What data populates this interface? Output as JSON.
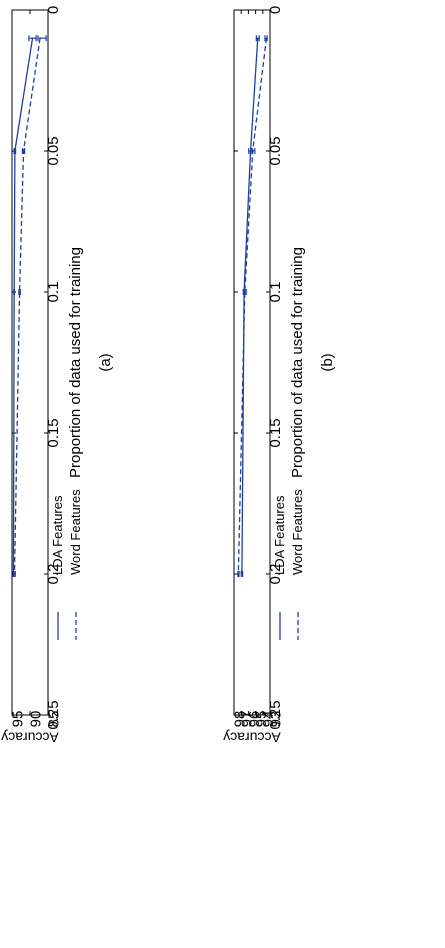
{
  "colors": {
    "series": "#1f3f9f",
    "axis": "#000000"
  },
  "chart_data": [
    {
      "id": "a",
      "type": "line",
      "caption": "(a)",
      "xlabel": "Proportion of data used for training",
      "ylabel": "Accuracy",
      "xlim": [
        0,
        0.25
      ],
      "ylim": [
        85,
        95
      ],
      "xticks": [
        "0",
        "0.05",
        "0.1",
        "0.15",
        "0.2",
        "0.25"
      ],
      "xtick_values": [
        0,
        0.05,
        0.1,
        0.15,
        0.2,
        0.25
      ],
      "yticks": [
        "85",
        "90",
        "95"
      ],
      "ytick_values": [
        85,
        90,
        95
      ],
      "grid": false,
      "legend_position": "top-right",
      "series": [
        {
          "name": "LDA Features",
          "style": "solid",
          "x": [
            0.01,
            0.05,
            0.1,
            0.2
          ],
          "y": [
            89.3,
            94.2,
            94.4,
            94.6
          ],
          "err_low": [
            88.3,
            94.0,
            94.3,
            94.5
          ],
          "err_high": [
            90.3,
            94.4,
            94.5,
            94.7
          ]
        },
        {
          "name": "Word Features",
          "style": "dashed",
          "x": [
            0.01,
            0.05,
            0.1,
            0.2
          ],
          "y": [
            87.2,
            91.8,
            92.9,
            94.3
          ],
          "err_low": [
            85.5,
            91.5,
            92.7,
            94.1
          ],
          "err_high": [
            87.8,
            92.1,
            93.1,
            94.5
          ]
        }
      ]
    },
    {
      "id": "b",
      "type": "line",
      "caption": "(b)",
      "xlabel": "Proportion of data used for training",
      "ylabel": "Accuracy",
      "xlim": [
        0,
        0.25
      ],
      "ylim": [
        93,
        98
      ],
      "xticks": [
        "0",
        "0.05",
        "0.1",
        "0.15",
        "0.2",
        "0.25"
      ],
      "xtick_values": [
        0,
        0.05,
        0.1,
        0.15,
        0.2,
        0.25
      ],
      "yticks": [
        "93",
        "94",
        "95",
        "96",
        "97",
        "98"
      ],
      "ytick_values": [
        93,
        94,
        95,
        96,
        97,
        98
      ],
      "grid": false,
      "legend_position": "top-right",
      "series": [
        {
          "name": "LDA Features",
          "style": "solid",
          "x": [
            0.01,
            0.05,
            0.1,
            0.2
          ],
          "y": [
            94.7,
            95.7,
            96.6,
            96.9
          ],
          "err_low": [
            94.5,
            95.5,
            96.5,
            96.8
          ],
          "err_high": [
            94.9,
            95.95,
            96.7,
            97.0
          ]
        },
        {
          "name": "Word Features",
          "style": "dashed",
          "x": [
            0.01,
            0.05,
            0.1,
            0.2
          ],
          "y": [
            93.5,
            95.4,
            96.5,
            97.4
          ],
          "err_low": [
            93.4,
            95.1,
            96.3,
            97.3
          ],
          "err_high": [
            93.7,
            95.5,
            96.7,
            97.45
          ]
        }
      ]
    }
  ]
}
